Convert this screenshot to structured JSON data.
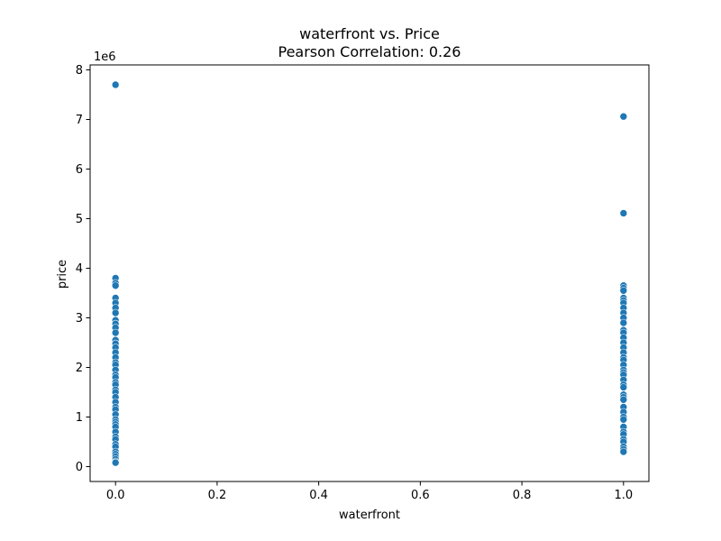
{
  "chart_data": {
    "type": "scatter",
    "title": "waterfront vs. Price",
    "subtitle": "Pearson Correlation: 0.26",
    "xlabel": "waterfront",
    "ylabel": "price",
    "y_offset_label": "1e6",
    "xlim": [
      -0.05,
      1.05
    ],
    "ylim": [
      -300000,
      8100000
    ],
    "x_ticks": [
      0.0,
      0.2,
      0.4,
      0.6,
      0.8,
      1.0
    ],
    "x_tick_labels": [
      "0.0",
      "0.2",
      "0.4",
      "0.6",
      "0.8",
      "1.0"
    ],
    "y_ticks": [
      0,
      1000000,
      2000000,
      3000000,
      4000000,
      5000000,
      6000000,
      7000000,
      8000000
    ],
    "y_tick_labels": [
      "0",
      "1",
      "2",
      "3",
      "4",
      "5",
      "6",
      "7",
      "8"
    ],
    "grid": false,
    "marker_color": "#1f77b4",
    "points": [
      {
        "x": 0,
        "y": 7700000
      },
      {
        "x": 0,
        "y": 3800000
      },
      {
        "x": 0,
        "y": 3700000
      },
      {
        "x": 0,
        "y": 3650000
      },
      {
        "x": 0,
        "y": 3400000
      },
      {
        "x": 0,
        "y": 3300000
      },
      {
        "x": 0,
        "y": 3200000
      },
      {
        "x": 0,
        "y": 3100000
      },
      {
        "x": 0,
        "y": 2950000
      },
      {
        "x": 0,
        "y": 2880000
      },
      {
        "x": 0,
        "y": 2800000
      },
      {
        "x": 0,
        "y": 2700000
      },
      {
        "x": 0,
        "y": 2550000
      },
      {
        "x": 0,
        "y": 2480000
      },
      {
        "x": 0,
        "y": 2400000
      },
      {
        "x": 0,
        "y": 2300000
      },
      {
        "x": 0,
        "y": 2200000
      },
      {
        "x": 0,
        "y": 2100000
      },
      {
        "x": 0,
        "y": 2050000
      },
      {
        "x": 0,
        "y": 1950000
      },
      {
        "x": 0,
        "y": 1850000
      },
      {
        "x": 0,
        "y": 1800000
      },
      {
        "x": 0,
        "y": 1700000
      },
      {
        "x": 0,
        "y": 1650000
      },
      {
        "x": 0,
        "y": 1550000
      },
      {
        "x": 0,
        "y": 1500000
      },
      {
        "x": 0,
        "y": 1400000
      },
      {
        "x": 0,
        "y": 1300000
      },
      {
        "x": 0,
        "y": 1200000
      },
      {
        "x": 0,
        "y": 1150000
      },
      {
        "x": 0,
        "y": 1050000
      },
      {
        "x": 0,
        "y": 950000
      },
      {
        "x": 0,
        "y": 900000
      },
      {
        "x": 0,
        "y": 850000
      },
      {
        "x": 0,
        "y": 800000
      },
      {
        "x": 0,
        "y": 700000
      },
      {
        "x": 0,
        "y": 600000
      },
      {
        "x": 0,
        "y": 550000
      },
      {
        "x": 0,
        "y": 450000
      },
      {
        "x": 0,
        "y": 400000
      },
      {
        "x": 0,
        "y": 300000
      },
      {
        "x": 0,
        "y": 250000
      },
      {
        "x": 0,
        "y": 200000
      },
      {
        "x": 0,
        "y": 150000
      },
      {
        "x": 0,
        "y": 100000
      },
      {
        "x": 0,
        "y": 80000
      },
      {
        "x": 1,
        "y": 7060000
      },
      {
        "x": 1,
        "y": 5110000
      },
      {
        "x": 1,
        "y": 3650000
      },
      {
        "x": 1,
        "y": 3600000
      },
      {
        "x": 1,
        "y": 3550000
      },
      {
        "x": 1,
        "y": 3400000
      },
      {
        "x": 1,
        "y": 3350000
      },
      {
        "x": 1,
        "y": 3300000
      },
      {
        "x": 1,
        "y": 3200000
      },
      {
        "x": 1,
        "y": 3100000
      },
      {
        "x": 1,
        "y": 3000000
      },
      {
        "x": 1,
        "y": 2900000
      },
      {
        "x": 1,
        "y": 2750000
      },
      {
        "x": 1,
        "y": 2700000
      },
      {
        "x": 1,
        "y": 2600000
      },
      {
        "x": 1,
        "y": 2500000
      },
      {
        "x": 1,
        "y": 2400000
      },
      {
        "x": 1,
        "y": 2300000
      },
      {
        "x": 1,
        "y": 2200000
      },
      {
        "x": 1,
        "y": 2150000
      },
      {
        "x": 1,
        "y": 2050000
      },
      {
        "x": 1,
        "y": 1950000
      },
      {
        "x": 1,
        "y": 1900000
      },
      {
        "x": 1,
        "y": 1850000
      },
      {
        "x": 1,
        "y": 1750000
      },
      {
        "x": 1,
        "y": 1650000
      },
      {
        "x": 1,
        "y": 1600000
      },
      {
        "x": 1,
        "y": 1450000
      },
      {
        "x": 1,
        "y": 1400000
      },
      {
        "x": 1,
        "y": 1350000
      },
      {
        "x": 1,
        "y": 1200000
      },
      {
        "x": 1,
        "y": 1100000
      },
      {
        "x": 1,
        "y": 1000000
      },
      {
        "x": 1,
        "y": 950000
      },
      {
        "x": 1,
        "y": 800000
      },
      {
        "x": 1,
        "y": 700000
      },
      {
        "x": 1,
        "y": 650000
      },
      {
        "x": 1,
        "y": 550000
      },
      {
        "x": 1,
        "y": 500000
      },
      {
        "x": 1,
        "y": 400000
      },
      {
        "x": 1,
        "y": 350000
      },
      {
        "x": 1,
        "y": 300000
      }
    ]
  }
}
